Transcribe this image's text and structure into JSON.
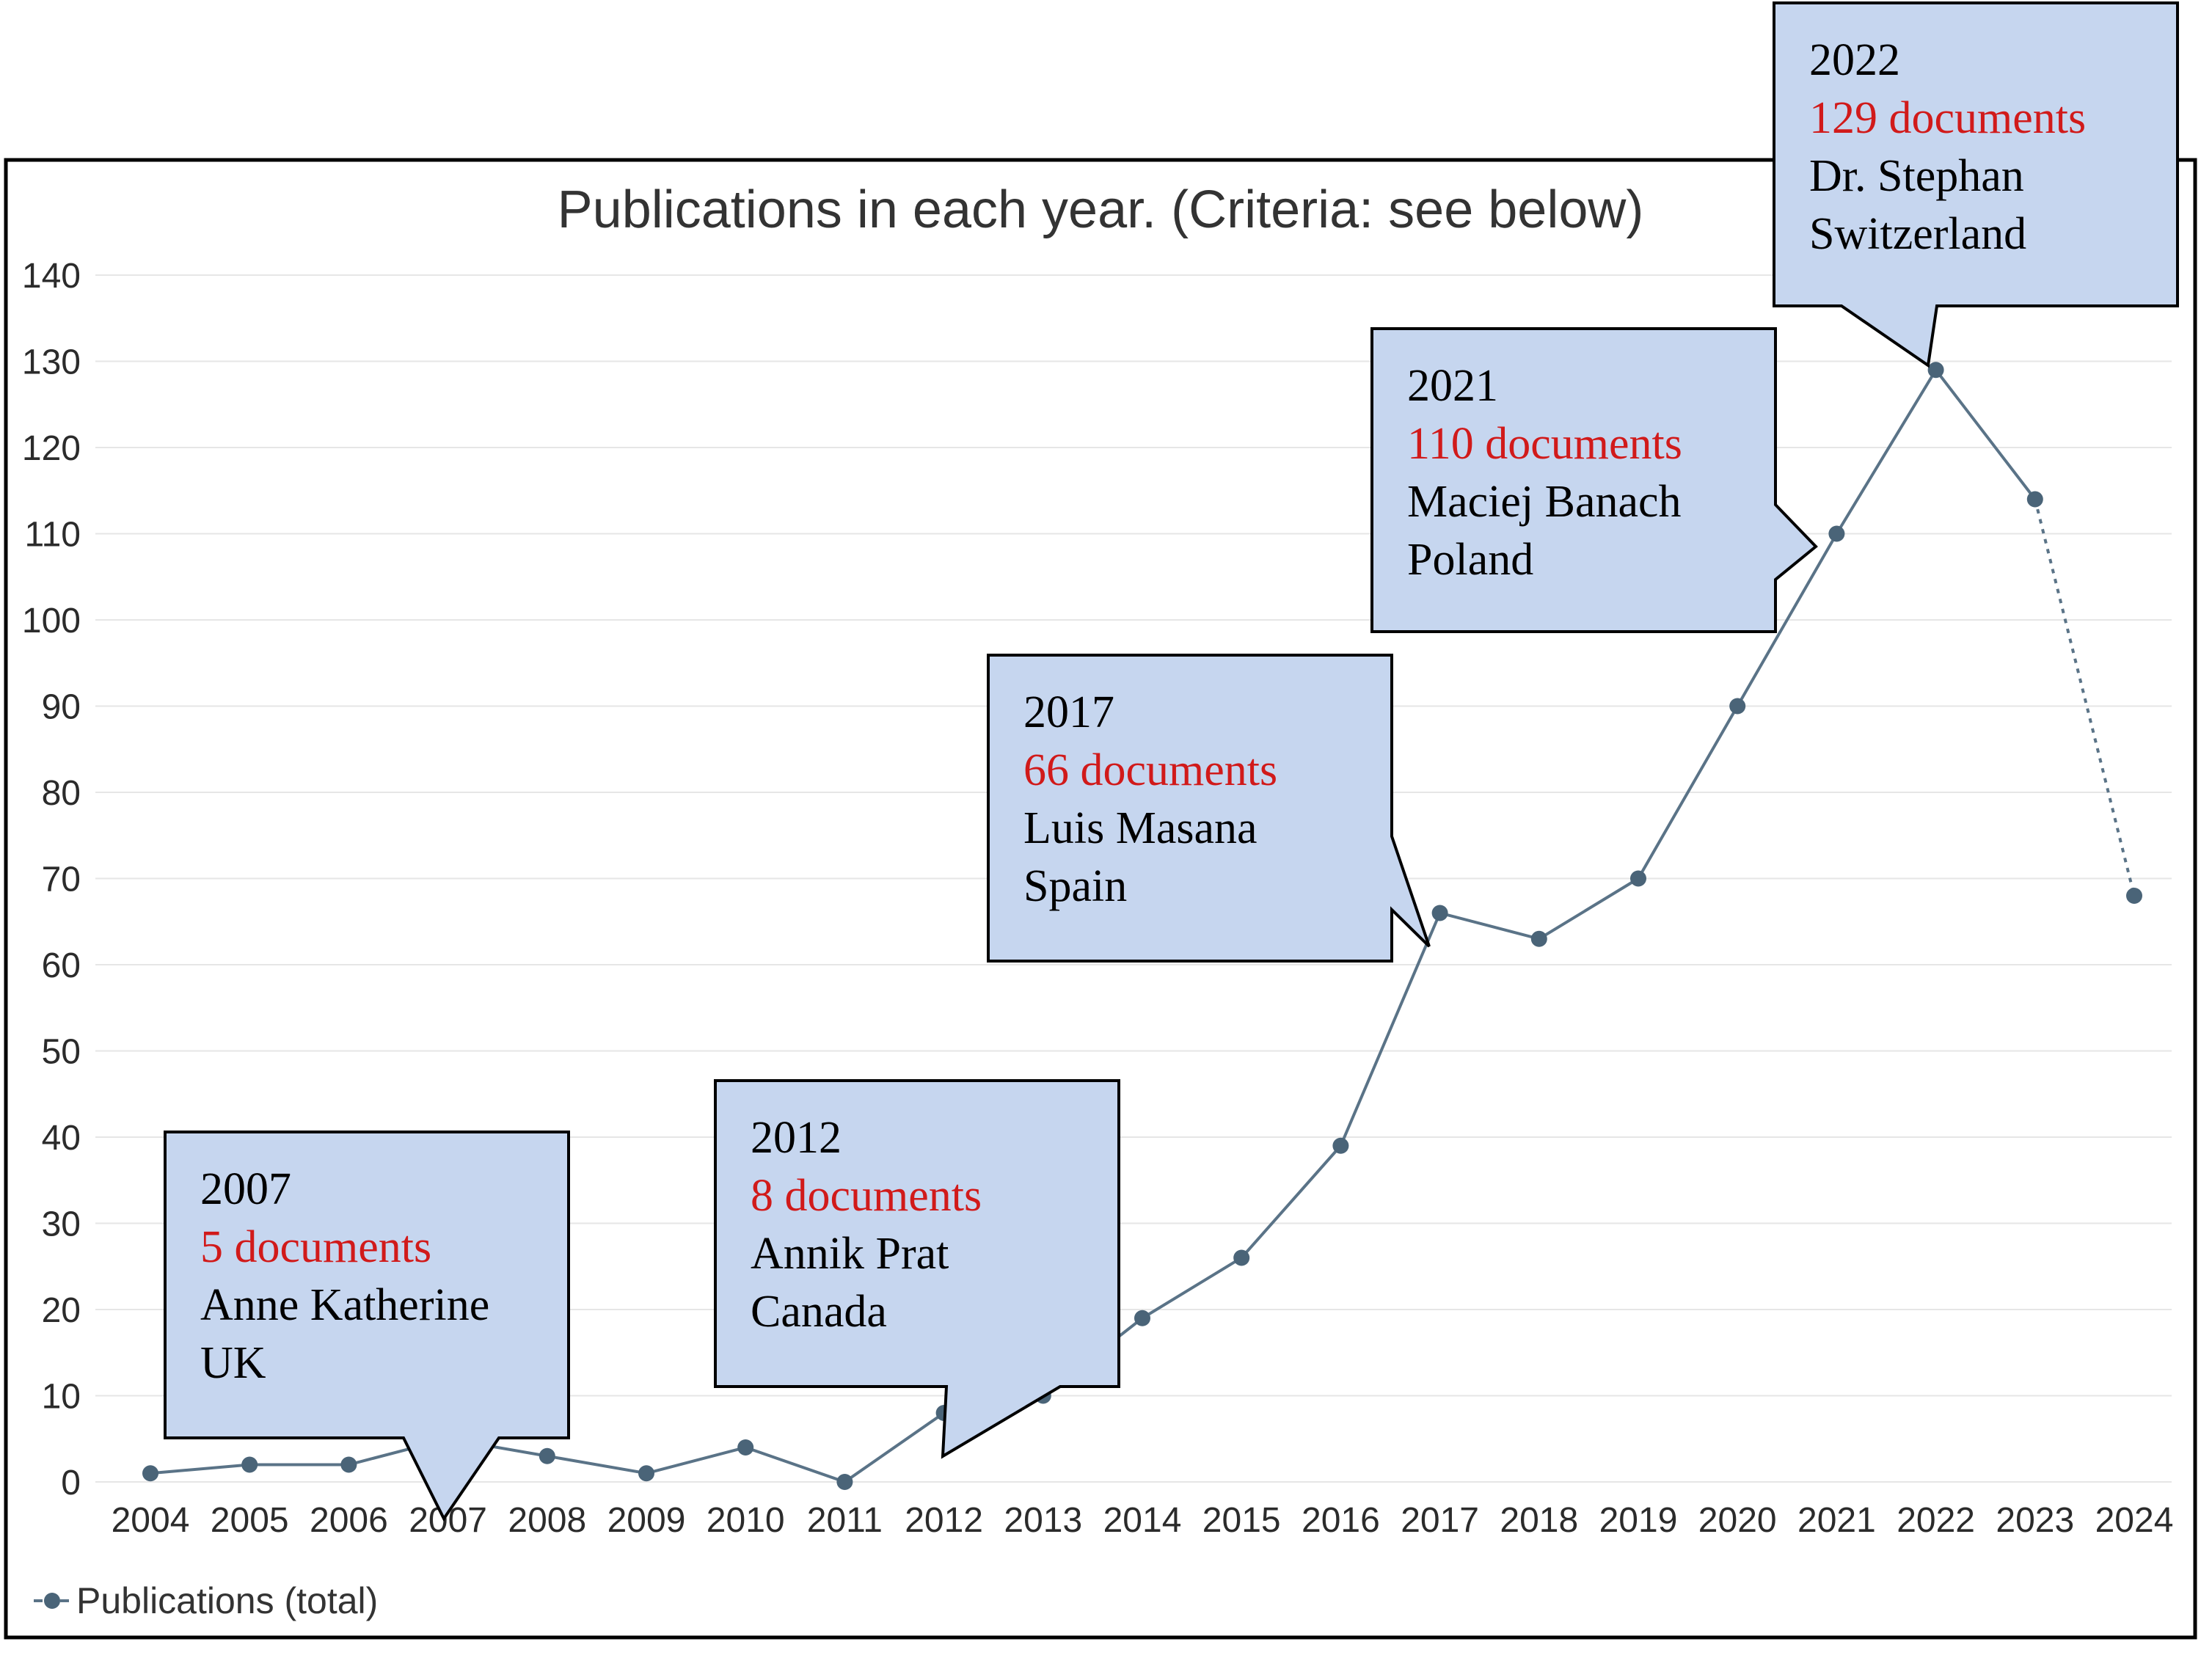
{
  "chart_data": {
    "type": "line",
    "title": "Publications in each year. (Criteria: see below)",
    "xlabel": "",
    "ylabel": "",
    "ylim": [
      0,
      140
    ],
    "yticks": [
      0,
      10,
      20,
      30,
      40,
      50,
      60,
      70,
      80,
      90,
      100,
      110,
      120,
      130,
      140
    ],
    "categories": [
      "2004",
      "2005",
      "2006",
      "2007",
      "2008",
      "2009",
      "2010",
      "2011",
      "2012",
      "2013",
      "2014",
      "2015",
      "2016",
      "2017",
      "2018",
      "2019",
      "2020",
      "2021",
      "2022",
      "2023",
      "2024"
    ],
    "series": [
      {
        "name": "Publications (total)",
        "values": [
          1,
          2,
          2,
          5,
          3,
          1,
          4,
          0,
          8,
          10,
          19,
          26,
          39,
          66,
          63,
          70,
          90,
          110,
          129,
          114,
          68
        ],
        "dashed_from": "2023",
        "color": "#4a6478"
      }
    ],
    "grid": true,
    "legend": "bottom-left",
    "annotations": [
      {
        "year": "2007",
        "documents": "5 documents",
        "name": "Anne Katherine",
        "country": "UK"
      },
      {
        "year": "2012",
        "documents": "8 documents",
        "name": "Annik Prat",
        "country": "Canada"
      },
      {
        "year": "2017",
        "documents": "66 documents",
        "name": "Luis Masana",
        "country": "Spain"
      },
      {
        "year": "2021",
        "documents": "110 documents",
        "name": "Maciej Banach",
        "country": "Poland"
      },
      {
        "year": "2022",
        "documents": "129 documents",
        "name": "Dr. Stephan",
        "country": "Switzerland"
      }
    ]
  },
  "colors": {
    "callout_fill": "#c6d6ef",
    "highlight": "#d11a1a",
    "series": "#4a6478"
  }
}
